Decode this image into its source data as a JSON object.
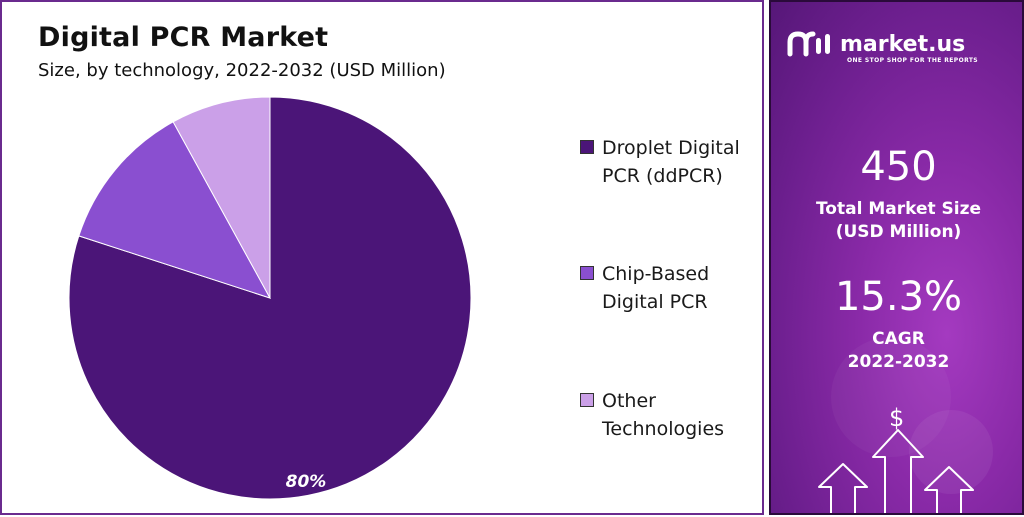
{
  "header": {
    "title": "Digital PCR Market",
    "subtitle": "Size, by technology, 2022-2032 (USD Million)"
  },
  "chart_data": {
    "type": "pie",
    "slices": [
      {
        "name": "Droplet Digital PCR (ddPCR)",
        "value": 80,
        "label": "80%",
        "color": "#4b1578"
      },
      {
        "name": "Chip-Based Digital PCR",
        "value": 12,
        "label": "",
        "color": "#8a4fd0"
      },
      {
        "name": "Other Technologies",
        "value": 8,
        "label": "",
        "color": "#cba0e8"
      }
    ],
    "legend": [
      {
        "lines": [
          "Droplet Digital",
          "PCR (ddPCR)"
        ],
        "color": "#4b1578"
      },
      {
        "lines": [
          "Chip-Based",
          "Digital PCR"
        ],
        "color": "#8a4fd0"
      },
      {
        "lines": [
          "Other",
          "Technologies"
        ],
        "color": "#cba0e8"
      }
    ],
    "legend_position": "right"
  },
  "sidebar": {
    "brand": "market.us",
    "tagline": "ONE STOP SHOP FOR THE REPORTS",
    "market_size_value": "450",
    "market_size_label_1": "Total Market Size",
    "market_size_label_2": "(USD Million)",
    "cagr_value": "15.3%",
    "cagr_label_1": "CAGR",
    "cagr_label_2": "2022-2032",
    "dollar_symbol": "$"
  }
}
